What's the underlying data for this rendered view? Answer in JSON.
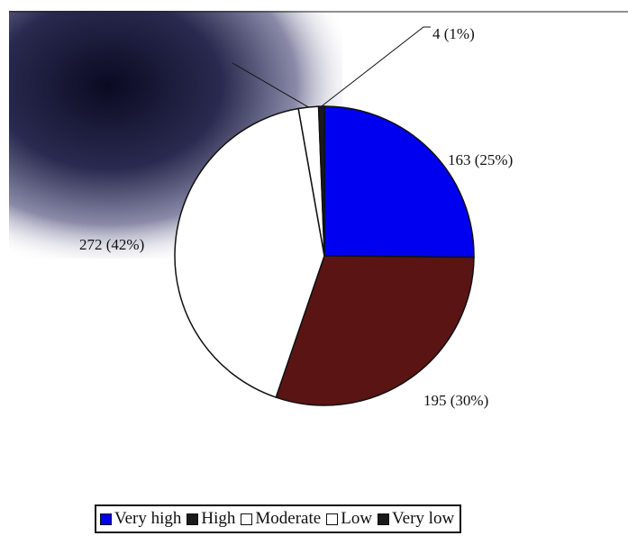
{
  "chart_data": {
    "type": "pie",
    "slices": [
      {
        "name": "Very high",
        "value": 163,
        "percent": 25,
        "label": "163 (25%)",
        "color": "#0000f0"
      },
      {
        "name": "High",
        "value": 195,
        "percent": 30,
        "label": "195 (30%)",
        "color": "#5a1414"
      },
      {
        "name": "Moderate",
        "value": 272,
        "percent": 42,
        "label": "272 (42%)",
        "color": "#ffffff"
      },
      {
        "name": "Low",
        "value": 14,
        "percent": 2,
        "label": "",
        "color": "#ffffff"
      },
      {
        "name": "Very low",
        "value": 4,
        "percent": 1,
        "label": "4 (1%)",
        "color": "#1a1a1a"
      }
    ],
    "legend": {
      "placement": "bottom",
      "entries": [
        "Very high",
        "High",
        "Moderate",
        "Low",
        "Very low"
      ]
    },
    "start_angle_deg": 90,
    "direction": "clockwise"
  }
}
